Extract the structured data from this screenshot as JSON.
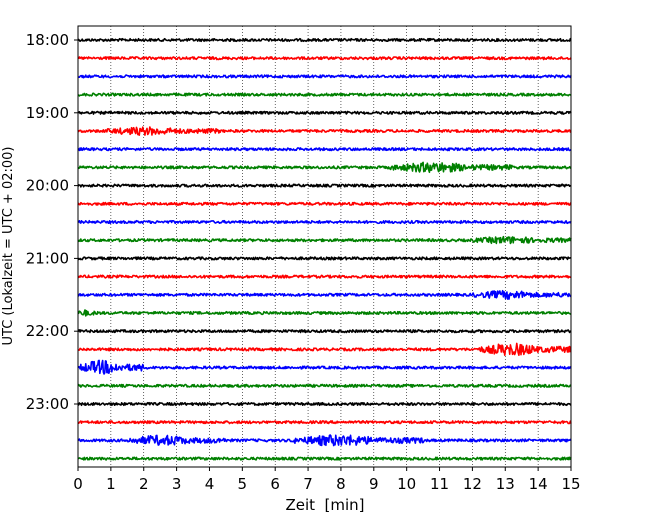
{
  "chart_data": {
    "type": "line",
    "title": "",
    "xlabel": "Zeit  [min]",
    "ylabel": "UTC (Lokalzeit = UTC + 02:00)",
    "xlim": [
      0,
      15
    ],
    "x_ticks": [
      0,
      1,
      2,
      3,
      4,
      5,
      6,
      7,
      8,
      9,
      10,
      11,
      12,
      13,
      14,
      15
    ],
    "y_tick_labels": [
      "18:00",
      "19:00",
      "20:00",
      "21:00",
      "22:00",
      "23:00"
    ],
    "grid": "vertical dotted",
    "line_colors": [
      "#000000",
      "#ff0000",
      "#0000ff",
      "#008000"
    ],
    "series": [
      {
        "time": "18:00",
        "color": "#000000",
        "events": []
      },
      {
        "time": "18:15",
        "color": "#ff0000",
        "events": []
      },
      {
        "time": "18:30",
        "color": "#0000ff",
        "events": []
      },
      {
        "time": "18:45",
        "color": "#008000",
        "events": []
      },
      {
        "time": "19:00",
        "color": "#000000",
        "events": []
      },
      {
        "time": "19:15",
        "color": "#ff0000",
        "events": [
          {
            "start": 0.8,
            "end": 4.3,
            "amplitude": 3
          }
        ]
      },
      {
        "time": "19:30",
        "color": "#0000ff",
        "events": []
      },
      {
        "time": "19:45",
        "color": "#008000",
        "events": [
          {
            "start": 9.5,
            "end": 13.2,
            "amplitude": 4
          }
        ]
      },
      {
        "time": "20:00",
        "color": "#000000",
        "events": []
      },
      {
        "time": "20:15",
        "color": "#ff0000",
        "events": []
      },
      {
        "time": "20:30",
        "color": "#0000ff",
        "events": []
      },
      {
        "time": "20:45",
        "color": "#008000",
        "events": [
          {
            "start": 12.0,
            "end": 15.0,
            "amplitude": 2.5
          }
        ]
      },
      {
        "time": "21:00",
        "color": "#000000",
        "events": []
      },
      {
        "time": "21:15",
        "color": "#ff0000",
        "events": []
      },
      {
        "time": "21:30",
        "color": "#0000ff",
        "events": [
          {
            "start": 12.0,
            "end": 15.0,
            "amplitude": 3
          }
        ]
      },
      {
        "time": "21:45",
        "color": "#008000",
        "events": [
          {
            "start": 0.0,
            "end": 0.6,
            "amplitude": 2
          }
        ]
      },
      {
        "time": "22:00",
        "color": "#000000",
        "events": []
      },
      {
        "time": "22:15",
        "color": "#ff0000",
        "events": [
          {
            "start": 12.2,
            "end": 15.0,
            "amplitude": 5
          }
        ]
      },
      {
        "time": "22:30",
        "color": "#0000ff",
        "events": [
          {
            "start": 0.0,
            "end": 2.0,
            "amplitude": 6
          }
        ]
      },
      {
        "time": "22:45",
        "color": "#008000",
        "events": []
      },
      {
        "time": "23:00",
        "color": "#000000",
        "events": []
      },
      {
        "time": "23:15",
        "color": "#ff0000",
        "events": []
      },
      {
        "time": "23:30",
        "color": "#0000ff",
        "events": [
          {
            "start": 1.5,
            "end": 4.5,
            "amplitude": 4
          },
          {
            "start": 6.5,
            "end": 10.5,
            "amplitude": 4.5
          }
        ]
      },
      {
        "time": "23:45",
        "color": "#008000",
        "events": []
      }
    ]
  }
}
